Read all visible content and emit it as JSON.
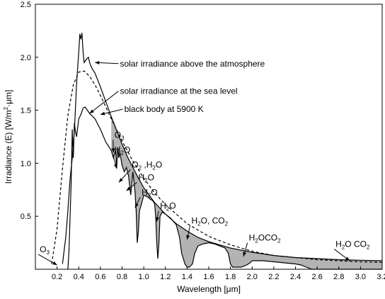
{
  "chart_data": {
    "type": "line",
    "title": "",
    "xlabel": "Wavelength [μm]",
    "ylabel": {
      "prefix": "Irradiance (E) [W/m",
      "sup": "2",
      "suffix": "·μm]"
    },
    "xlim": [
      0,
      3.2
    ],
    "ylim": [
      0,
      2.5
    ],
    "x_ticks": [
      0.2,
      0.4,
      0.6,
      0.8,
      1.0,
      1.2,
      1.4,
      1.6,
      1.8,
      2.0,
      2.2,
      2.4,
      2.6,
      2.8,
      3.0,
      3.2
    ],
    "x_tick_labels": [
      "0.2",
      "0.4",
      "0.6",
      "0.8",
      "1.0",
      "1.2",
      "1.4",
      "1.6",
      "1.8",
      "2.0",
      "2.2",
      "2.4",
      "2.6",
      "2.8",
      "3.0",
      "3.2"
    ],
    "y_ticks": [
      0.5,
      1.0,
      1.5,
      2.0,
      2.5
    ],
    "y_tick_labels": [
      "0.5",
      "1.0",
      "1.5",
      "2.0",
      "2.5"
    ],
    "grid": false,
    "absorption_fill_color": "#b3b3b3",
    "series": [
      {
        "key": "above_atmosphere",
        "style": "solid",
        "color": "#000000",
        "x": [
          0.25,
          0.28,
          0.3,
          0.32,
          0.34,
          0.36,
          0.38,
          0.4,
          0.41,
          0.42,
          0.43,
          0.44,
          0.45,
          0.47,
          0.49,
          0.5,
          0.52,
          0.55,
          0.6,
          0.65,
          0.7,
          0.75,
          0.8,
          0.85,
          0.9,
          0.95,
          1.0,
          1.1,
          1.2,
          1.3,
          1.4,
          1.5,
          1.6,
          1.8,
          2.0,
          2.2,
          2.4,
          2.6,
          2.8,
          3.0,
          3.2
        ],
        "y": [
          0.05,
          0.3,
          0.55,
          0.85,
          1.05,
          1.3,
          1.75,
          2.05,
          2.22,
          2.17,
          2.23,
          2.05,
          1.95,
          1.98,
          2.0,
          1.95,
          1.9,
          1.85,
          1.72,
          1.58,
          1.44,
          1.31,
          1.18,
          1.06,
          0.96,
          0.86,
          0.77,
          0.63,
          0.52,
          0.43,
          0.36,
          0.3,
          0.26,
          0.2,
          0.16,
          0.13,
          0.11,
          0.1,
          0.09,
          0.085,
          0.08
        ]
      },
      {
        "key": "black_body",
        "style": "dashed",
        "color": "#000000",
        "x": [
          0.15,
          0.2,
          0.25,
          0.3,
          0.35,
          0.4,
          0.45,
          0.5,
          0.55,
          0.6,
          0.7,
          0.8,
          0.9,
          1.0,
          1.1,
          1.2,
          1.4,
          1.6,
          1.8,
          2.0,
          2.2,
          2.4,
          2.6,
          2.8,
          3.0,
          3.2
        ],
        "y": [
          0.05,
          0.38,
          0.95,
          1.45,
          1.74,
          1.86,
          1.87,
          1.82,
          1.74,
          1.64,
          1.42,
          1.21,
          1.02,
          0.86,
          0.72,
          0.61,
          0.43,
          0.31,
          0.23,
          0.17,
          0.13,
          0.11,
          0.09,
          0.08,
          0.07,
          0.065
        ]
      },
      {
        "key": "sea_level",
        "style": "solid",
        "color": "#000000",
        "x": [
          0.3,
          0.31,
          0.33,
          0.34,
          0.35,
          0.36,
          0.37,
          0.38,
          0.4,
          0.42,
          0.44,
          0.46,
          0.48,
          0.5,
          0.55,
          0.6,
          0.65,
          0.7,
          0.72,
          0.74,
          0.75,
          0.76,
          0.77,
          0.78,
          0.8,
          0.82,
          0.84,
          0.86,
          0.88,
          0.9,
          0.92,
          0.93,
          0.94,
          0.95,
          0.96,
          0.98,
          1.0,
          1.04,
          1.06,
          1.08,
          1.1,
          1.11,
          1.12,
          1.13,
          1.14,
          1.15,
          1.17,
          1.2,
          1.25,
          1.3,
          1.33,
          1.35,
          1.38,
          1.4,
          1.42,
          1.45,
          1.47,
          1.5,
          1.55,
          1.6,
          1.65,
          1.7,
          1.75,
          1.78,
          1.8,
          1.82,
          1.85,
          1.9,
          1.95,
          1.98,
          2.0,
          2.02,
          2.05,
          2.1,
          2.2,
          2.3,
          2.4,
          2.45,
          2.5,
          2.55,
          2.6,
          2.8,
          3.0,
          3.2
        ],
        "y": [
          0.0,
          0.18,
          0.8,
          1.32,
          1.05,
          1.38,
          1.3,
          1.25,
          1.42,
          1.46,
          1.52,
          1.53,
          1.5,
          1.47,
          1.42,
          1.32,
          1.2,
          1.12,
          1.05,
          1.12,
          0.95,
          1.15,
          1.05,
          1.1,
          0.98,
          0.92,
          0.96,
          0.88,
          0.7,
          0.92,
          0.72,
          0.55,
          0.25,
          0.35,
          0.55,
          0.62,
          0.7,
          0.68,
          0.66,
          0.65,
          0.62,
          0.5,
          0.25,
          0.1,
          0.25,
          0.5,
          0.54,
          0.52,
          0.48,
          0.42,
          0.3,
          0.15,
          0.05,
          0.02,
          0.02,
          0.05,
          0.15,
          0.22,
          0.24,
          0.25,
          0.24,
          0.22,
          0.2,
          0.15,
          0.05,
          0.02,
          0.02,
          0.02,
          0.04,
          0.06,
          0.08,
          0.08,
          0.08,
          0.08,
          0.07,
          0.06,
          0.05,
          0.04,
          0.02,
          0.0,
          0.0,
          0.0,
          0.0,
          0.0
        ]
      }
    ],
    "annotations": [
      {
        "key": "above",
        "text": "solar irradiance above the atmosphere",
        "x": 0.78,
        "y": 1.94,
        "arrow_to": [
          0.55,
          1.95
        ],
        "anchor": "start"
      },
      {
        "key": "sea",
        "text": "solar irradiance at the sea level",
        "x": 0.78,
        "y": 1.68,
        "arrow_to": [
          0.5,
          1.47
        ],
        "anchor": "start"
      },
      {
        "key": "bb",
        "text": "black body at 5900 K",
        "x": 0.82,
        "y": 1.51,
        "arrow_to": [
          0.6,
          1.46
        ],
        "anchor": "start"
      }
    ],
    "absorption_labels": [
      {
        "key": "o3_mid",
        "parts": [
          [
            "O",
            "n"
          ],
          [
            "3",
            "sub"
          ]
        ],
        "x": 0.73,
        "y": 1.24,
        "arrow_to": [
          0.72,
          1.1
        ]
      },
      {
        "key": "h2o_1",
        "parts": [
          [
            "H",
            "n"
          ],
          [
            "2",
            "sub"
          ],
          [
            "O",
            "n"
          ]
        ],
        "x": 0.73,
        "y": 1.1,
        "arrow_to": [
          0.75,
          0.95
        ]
      },
      {
        "key": "o2_h2o",
        "parts": [
          [
            "O",
            "n"
          ],
          [
            "2",
            "sub"
          ],
          [
            " ,H",
            "n"
          ],
          [
            "2",
            "sub"
          ],
          [
            "O",
            "n"
          ]
        ],
        "x": 0.89,
        "y": 0.96,
        "arrow_to": [
          0.77,
          0.82
        ]
      },
      {
        "key": "h2o_2",
        "parts": [
          [
            "H",
            "n"
          ],
          [
            "2",
            "sub"
          ],
          [
            "O",
            "n"
          ]
        ],
        "x": 0.95,
        "y": 0.84,
        "arrow_to": [
          0.84,
          0.74
        ]
      },
      {
        "key": "h2o_3",
        "parts": [
          [
            "H",
            "n"
          ],
          [
            "2",
            "sub"
          ],
          [
            "O",
            "n"
          ]
        ],
        "x": 0.98,
        "y": 0.7,
        "arrow_to": [
          0.92,
          0.58
        ]
      },
      {
        "key": "h2o_4",
        "parts": [
          [
            "H",
            "n"
          ],
          [
            "2",
            "sub"
          ],
          [
            "O",
            "n"
          ]
        ],
        "x": 1.15,
        "y": 0.57,
        "arrow_to": [
          1.12,
          0.45
        ]
      },
      {
        "key": "h2o_co2_1",
        "parts": [
          [
            "H",
            "n"
          ],
          [
            "2",
            "sub"
          ],
          [
            "O, CO",
            "n"
          ],
          [
            "2",
            "sub"
          ]
        ],
        "x": 1.44,
        "y": 0.43,
        "arrow_to": [
          1.4,
          0.28
        ]
      },
      {
        "key": "h2o_co2_2",
        "parts": [
          [
            "H",
            "n"
          ],
          [
            "2",
            "sub"
          ],
          [
            "OCO",
            "n"
          ],
          [
            "2",
            "sub"
          ]
        ],
        "x": 1.97,
        "y": 0.27,
        "arrow_to": [
          1.92,
          0.12
        ]
      },
      {
        "key": "h2o_co2_3",
        "parts": [
          [
            "H",
            "n"
          ],
          [
            "2",
            "sub"
          ],
          [
            "O CO",
            "n"
          ],
          [
            "2",
            "sub"
          ]
        ],
        "x": 2.77,
        "y": 0.21,
        "arrow_to": [
          2.9,
          0.08
        ]
      },
      {
        "key": "o3_left",
        "parts": [
          [
            "O",
            "n"
          ],
          [
            "3",
            "sub"
          ]
        ],
        "x": 0.04,
        "y": 0.16,
        "arrow_to": [
          0.2,
          0.04
        ]
      }
    ]
  }
}
